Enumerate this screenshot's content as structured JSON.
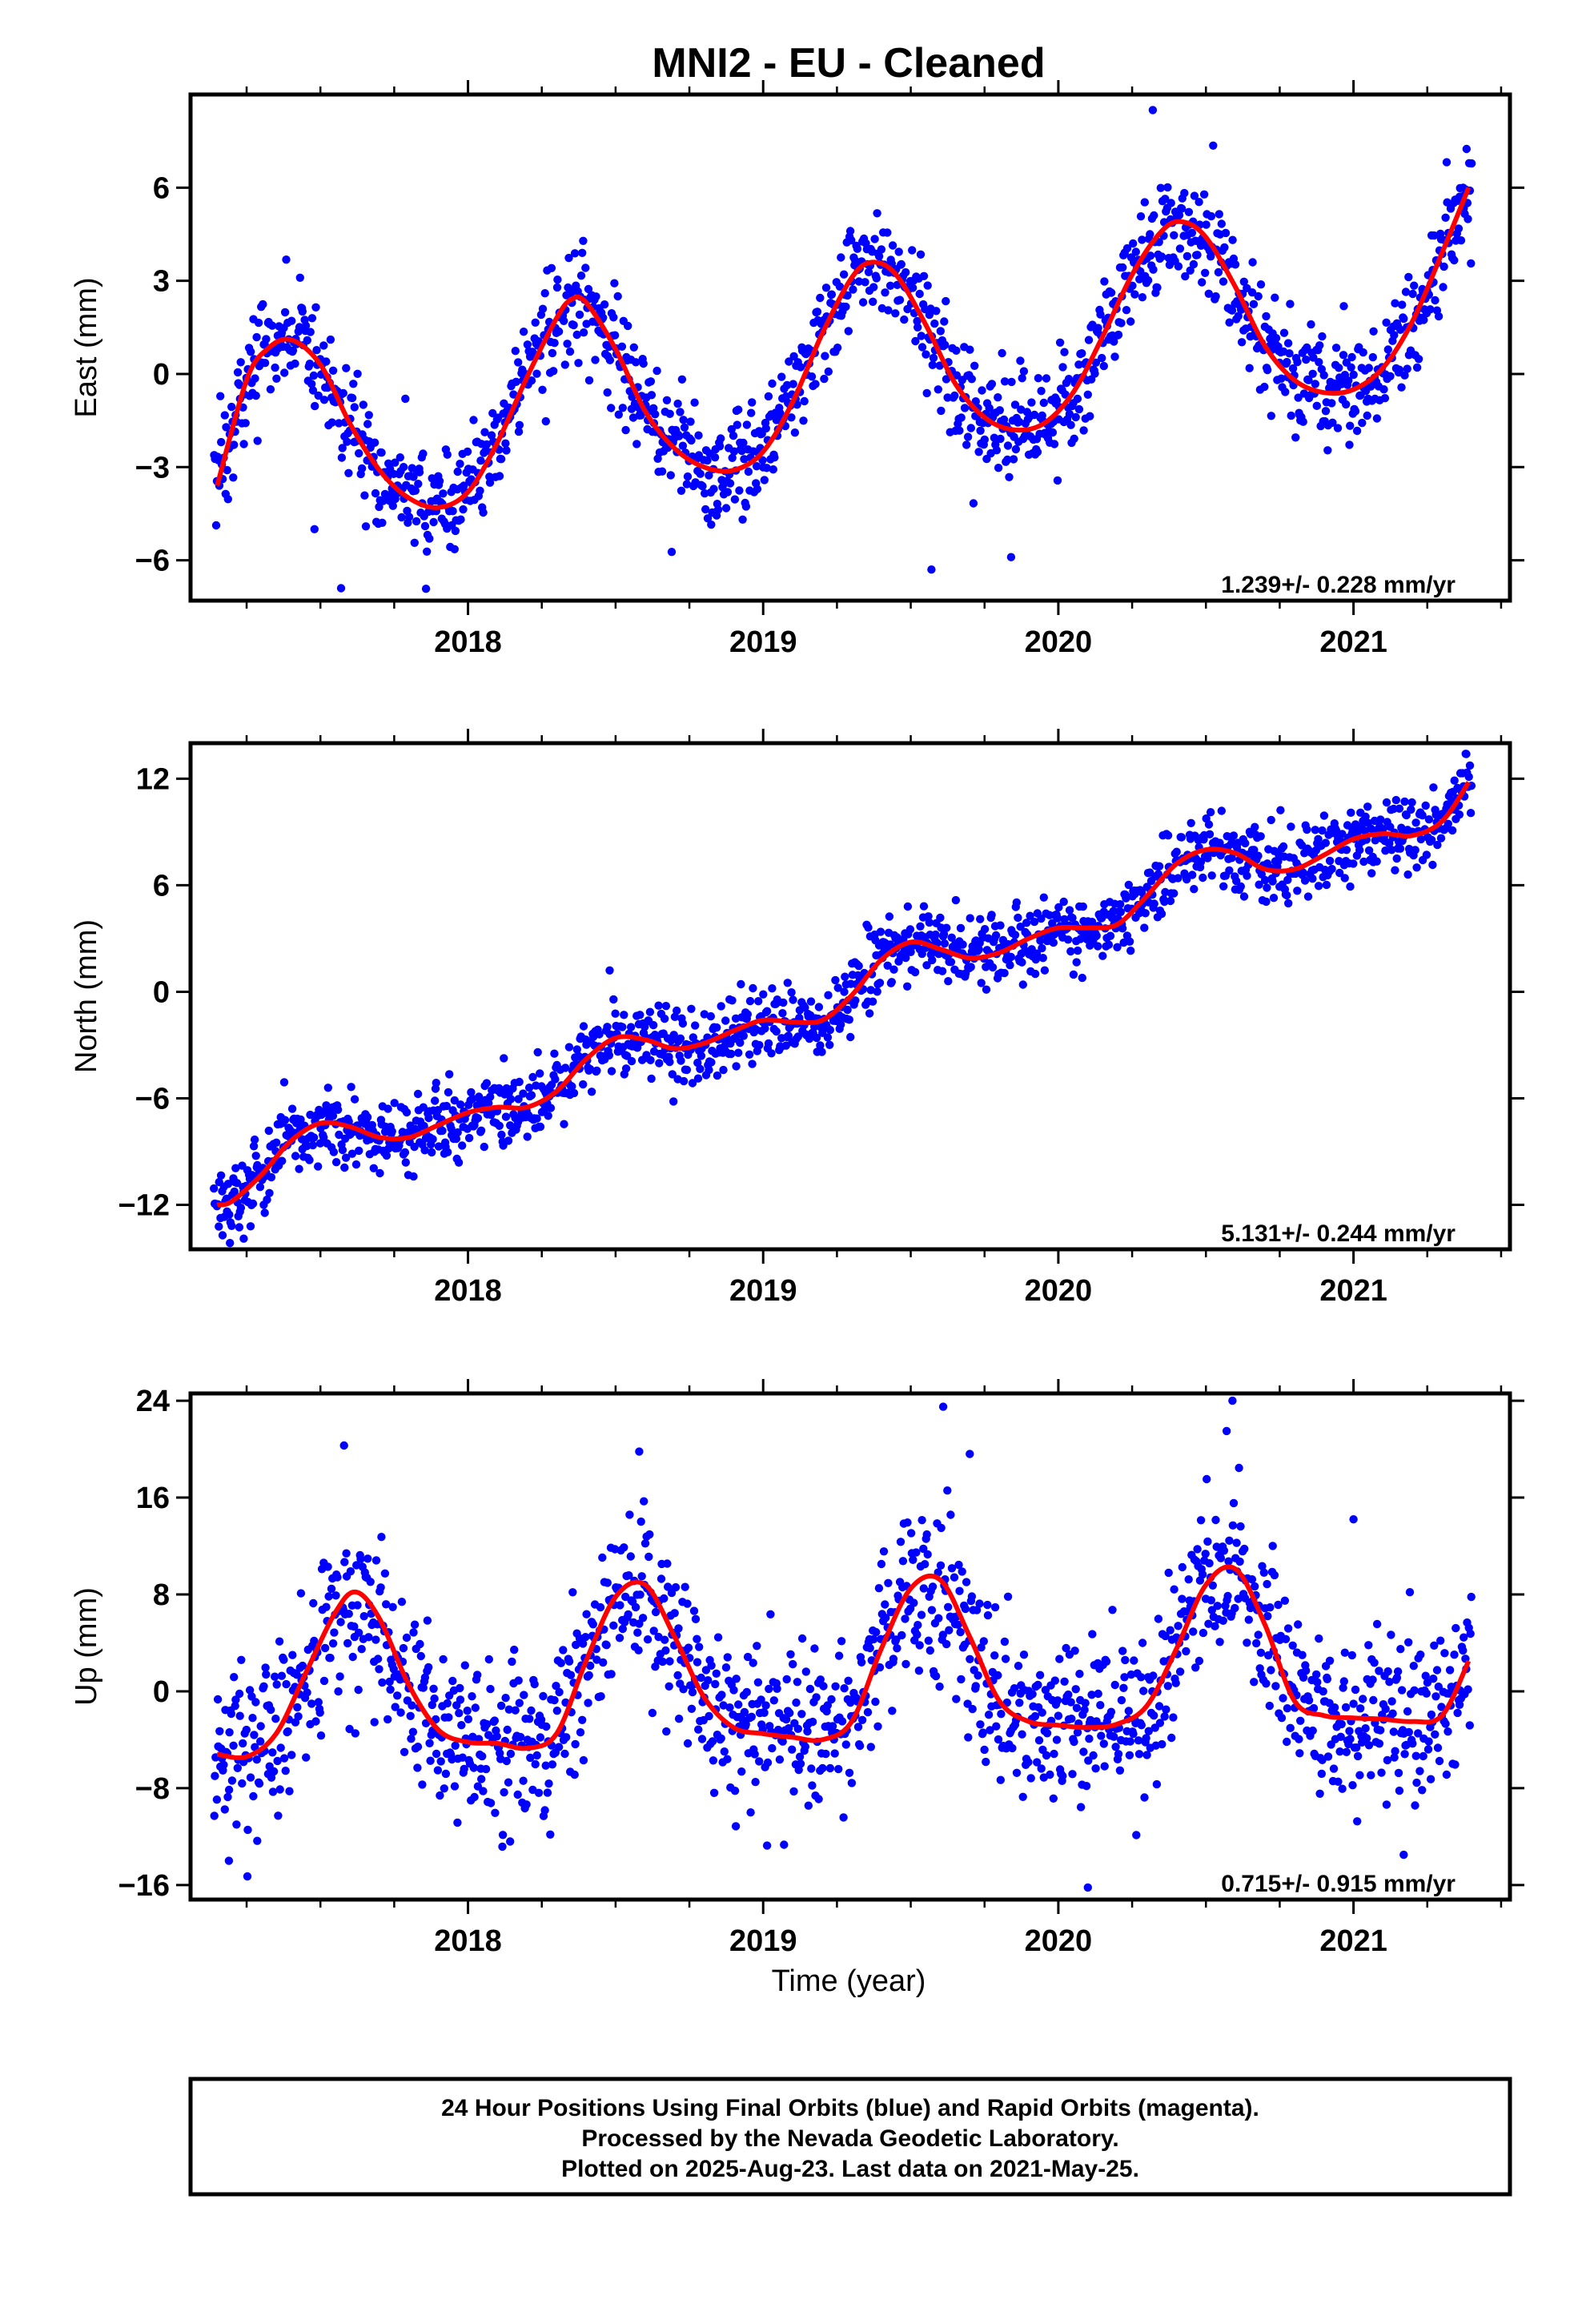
{
  "colors": {
    "points": "#0000ff",
    "model": "#ff0000",
    "frame": "#000000",
    "background": "#ffffff"
  },
  "title": "MNI2  - EU - Cleaned",
  "xlabel": "Time (year)",
  "footer": {
    "line1": "24 Hour Positions Using Final Orbits (blue) and Rapid Orbits (magenta).",
    "line2": "Processed by the Nevada Geodetic Laboratory.",
    "line3": "Plotted on 2025-Aug-23. Last data on 2021-May-25."
  },
  "chart_data": [
    {
      "type": "scatter",
      "ylabel": "East (mm)",
      "xlim": [
        2017.06,
        2021.53
      ],
      "ylim": [
        -7.3,
        9.0
      ],
      "yticks": [
        -6,
        -3,
        0,
        3,
        6
      ],
      "xticks": [
        2018,
        2019,
        2020,
        2021
      ],
      "grid": false,
      "rate_label": "1.239+/- 0.228 mm/yr",
      "series": [
        {
          "role": "model",
          "x": [
            2017.15,
            2017.25,
            2017.32,
            2017.4,
            2017.5,
            2017.6,
            2017.7,
            2017.8,
            2017.9,
            2018.0,
            2018.1,
            2018.2,
            2018.3,
            2018.35,
            2018.4,
            2018.5,
            2018.6,
            2018.7,
            2018.8,
            2018.9,
            2019.0,
            2019.1,
            2019.2,
            2019.3,
            2019.37,
            2019.45,
            2019.55,
            2019.65,
            2019.75,
            2019.85,
            2019.95,
            2020.05,
            2020.15,
            2020.25,
            2020.35,
            2020.42,
            2020.5,
            2020.6,
            2020.7,
            2020.8,
            2020.9,
            2021.0,
            2021.1,
            2021.2,
            2021.3,
            2021.39
          ],
          "y": [
            -3.6,
            -0.2,
            0.8,
            1.1,
            0.3,
            -1.6,
            -3.1,
            -4.0,
            -4.3,
            -3.8,
            -2.2,
            -0.1,
            1.8,
            2.4,
            2.3,
            0.8,
            -1.2,
            -2.4,
            -3.0,
            -3.1,
            -2.5,
            -0.9,
            1.3,
            3.1,
            3.6,
            3.2,
            1.6,
            -0.3,
            -1.4,
            -1.8,
            -1.6,
            -0.6,
            1.2,
            3.2,
            4.6,
            4.9,
            4.4,
            2.8,
            0.9,
            -0.2,
            -0.6,
            -0.5,
            0.2,
            1.7,
            3.9,
            6.0
          ]
        },
        {
          "role": "daily positions",
          "mean_x": [
            2017.15,
            2017.25,
            2017.32,
            2017.4,
            2017.5,
            2017.6,
            2017.7,
            2017.8,
            2017.9,
            2018.0,
            2018.1,
            2018.2,
            2018.3,
            2018.35,
            2018.4,
            2018.5,
            2018.6,
            2018.7,
            2018.8,
            2018.9,
            2019.0,
            2019.1,
            2019.2,
            2019.3,
            2019.37,
            2019.45,
            2019.55,
            2019.65,
            2019.75,
            2019.85,
            2019.95,
            2020.05,
            2020.15,
            2020.25,
            2020.35,
            2020.42,
            2020.5,
            2020.6,
            2020.7,
            2020.8,
            2020.9,
            2021.0,
            2021.1,
            2021.2,
            2021.3,
            2021.39
          ],
          "mean_y": [
            -3.6,
            -0.2,
            0.8,
            1.1,
            0.3,
            -1.6,
            -3.1,
            -4.0,
            -4.3,
            -3.8,
            -2.2,
            -0.1,
            1.8,
            2.4,
            2.3,
            0.8,
            -1.2,
            -2.4,
            -3.0,
            -3.1,
            -2.5,
            -0.9,
            1.3,
            3.1,
            3.6,
            3.2,
            1.6,
            -0.3,
            -1.4,
            -1.8,
            -1.6,
            -0.6,
            1.2,
            3.2,
            4.6,
            4.9,
            4.4,
            2.8,
            0.9,
            -0.2,
            -0.6,
            -0.5,
            0.2,
            1.7,
            3.9,
            6.0
          ],
          "scatter_sd": 0.9,
          "x_range": [
            2017.14,
            2021.4
          ],
          "n_points": 1450,
          "outliers": [
            [
              2020.32,
              8.5
            ],
            [
              2017.57,
              -6.9
            ],
            [
              2019.57,
              -6.3
            ],
            [
              2019.84,
              -5.9
            ],
            [
              2017.48,
              -5.0
            ]
          ]
        }
      ]
    },
    {
      "type": "scatter",
      "ylabel": "North (mm)",
      "xlim": [
        2017.06,
        2021.53
      ],
      "ylim": [
        -14.5,
        14.0
      ],
      "yticks": [
        -12,
        -6,
        0,
        6,
        12
      ],
      "xticks": [
        2018,
        2019,
        2020,
        2021
      ],
      "grid": false,
      "rate_label": "5.131+/- 0.244 mm/yr",
      "series": [
        {
          "role": "model",
          "x": [
            2017.15,
            2017.2,
            2017.3,
            2017.4,
            2017.5,
            2017.6,
            2017.7,
            2017.8,
            2017.9,
            2018.0,
            2018.1,
            2018.2,
            2018.3,
            2018.4,
            2018.5,
            2018.6,
            2018.7,
            2018.8,
            2018.9,
            2019.0,
            2019.1,
            2019.2,
            2019.3,
            2019.4,
            2019.5,
            2019.6,
            2019.7,
            2019.8,
            2019.9,
            2020.0,
            2020.1,
            2020.2,
            2020.3,
            2020.4,
            2020.5,
            2020.6,
            2020.7,
            2020.8,
            2020.9,
            2021.0,
            2021.1,
            2021.2,
            2021.3,
            2021.39
          ],
          "y": [
            -12.0,
            -11.8,
            -10.3,
            -8.4,
            -7.4,
            -7.6,
            -8.2,
            -8.2,
            -7.5,
            -6.8,
            -6.5,
            -6.5,
            -5.6,
            -3.8,
            -2.6,
            -2.7,
            -3.2,
            -2.9,
            -2.2,
            -1.6,
            -1.7,
            -1.6,
            -0.2,
            1.8,
            2.8,
            2.4,
            1.9,
            2.2,
            3.0,
            3.6,
            3.6,
            3.8,
            5.4,
            7.2,
            8.0,
            7.8,
            6.9,
            6.9,
            7.7,
            8.6,
            8.9,
            8.8,
            9.6,
            11.8
          ]
        },
        {
          "role": "daily positions",
          "mean_x": [
            2017.15,
            2017.2,
            2017.3,
            2017.4,
            2017.5,
            2017.6,
            2017.7,
            2017.8,
            2017.9,
            2018.0,
            2018.1,
            2018.2,
            2018.3,
            2018.4,
            2018.5,
            2018.6,
            2018.7,
            2018.8,
            2018.9,
            2019.0,
            2019.1,
            2019.2,
            2019.3,
            2019.4,
            2019.5,
            2019.6,
            2019.7,
            2019.8,
            2019.9,
            2020.0,
            2020.1,
            2020.2,
            2020.3,
            2020.4,
            2020.5,
            2020.6,
            2020.7,
            2020.8,
            2020.9,
            2021.0,
            2021.1,
            2021.2,
            2021.3,
            2021.39
          ],
          "mean_y": [
            -12.0,
            -11.8,
            -10.3,
            -8.4,
            -7.4,
            -7.6,
            -8.2,
            -8.2,
            -7.5,
            -6.8,
            -6.5,
            -6.5,
            -5.6,
            -3.8,
            -2.6,
            -2.7,
            -3.2,
            -2.9,
            -2.2,
            -1.6,
            -1.7,
            -1.6,
            -0.2,
            1.8,
            2.8,
            2.4,
            1.9,
            2.2,
            3.0,
            3.6,
            3.6,
            3.8,
            5.4,
            7.2,
            8.0,
            7.8,
            6.9,
            6.9,
            7.7,
            8.6,
            8.9,
            8.8,
            9.6,
            11.8
          ],
          "scatter_sd": 1.0,
          "x_range": [
            2017.14,
            2021.4
          ],
          "n_points": 1450,
          "outliers": [
            [
              2017.24,
              -13.9
            ],
            [
              2018.48,
              1.2
            ],
            [
              2019.49,
              4.8
            ],
            [
              2021.38,
              13.4
            ]
          ]
        }
      ]
    },
    {
      "type": "scatter",
      "ylabel": "Up (mm)",
      "xlim": [
        2017.06,
        2021.53
      ],
      "ylim": [
        -17.2,
        24.6
      ],
      "yticks": [
        -16,
        -8,
        0,
        8,
        16,
        24
      ],
      "xticks": [
        2018,
        2019,
        2020,
        2021
      ],
      "grid": false,
      "rate_label": "0.715+/- 0.915 mm/yr",
      "series": [
        {
          "role": "model",
          "x": [
            2017.15,
            2017.25,
            2017.35,
            2017.45,
            2017.55,
            2017.62,
            2017.7,
            2017.8,
            2017.9,
            2018.0,
            2018.1,
            2018.2,
            2018.3,
            2018.4,
            2018.5,
            2018.6,
            2018.7,
            2018.8,
            2018.9,
            2019.0,
            2019.1,
            2019.2,
            2019.3,
            2019.4,
            2019.5,
            2019.6,
            2019.7,
            2019.8,
            2019.9,
            2020.0,
            2020.1,
            2020.2,
            2020.3,
            2020.4,
            2020.5,
            2020.6,
            2020.7,
            2020.8,
            2020.9,
            2021.0,
            2021.1,
            2021.2,
            2021.3,
            2021.39
          ],
          "y": [
            -5.2,
            -5.4,
            -3.5,
            1.5,
            6.5,
            8.2,
            6.0,
            0.5,
            -3.2,
            -4.2,
            -4.3,
            -4.7,
            -3.5,
            2.5,
            7.8,
            8.8,
            4.5,
            -0.5,
            -3.0,
            -3.5,
            -3.8,
            -4.0,
            -2.5,
            3.5,
            8.5,
            9.2,
            4.5,
            -0.8,
            -2.5,
            -2.8,
            -3.0,
            -2.7,
            -1.2,
            3.5,
            8.8,
            10.1,
            5.5,
            -0.8,
            -2.0,
            -2.2,
            -2.3,
            -2.5,
            -2.0,
            2.5
          ]
        },
        {
          "role": "daily positions",
          "mean_x": [
            2017.15,
            2017.25,
            2017.35,
            2017.45,
            2017.55,
            2017.62,
            2017.7,
            2017.8,
            2017.9,
            2018.0,
            2018.1,
            2018.2,
            2018.3,
            2018.4,
            2018.5,
            2018.6,
            2018.7,
            2018.8,
            2018.9,
            2019.0,
            2019.1,
            2019.2,
            2019.3,
            2019.4,
            2019.5,
            2019.6,
            2019.7,
            2019.8,
            2019.9,
            2020.0,
            2020.1,
            2020.2,
            2020.3,
            2020.4,
            2020.5,
            2020.6,
            2020.7,
            2020.8,
            2020.9,
            2021.0,
            2021.1,
            2021.2,
            2021.3,
            2021.39
          ],
          "mean_y": [
            -5.2,
            -5.4,
            -3.5,
            1.5,
            6.5,
            8.2,
            6.0,
            0.5,
            -3.2,
            -4.2,
            -4.3,
            -4.7,
            -3.5,
            2.5,
            7.8,
            8.8,
            4.5,
            -0.5,
            -3.0,
            -3.5,
            -3.8,
            -4.0,
            -2.5,
            3.5,
            8.5,
            9.2,
            4.5,
            -0.8,
            -2.5,
            -2.8,
            -3.0,
            -2.7,
            -1.2,
            3.5,
            8.8,
            10.1,
            5.5,
            -0.8,
            -2.0,
            -2.2,
            -2.3,
            -2.5,
            -2.0,
            2.5
          ],
          "scatter_sd": 3.4,
          "x_range": [
            2017.14,
            2021.4
          ],
          "n_points": 1450,
          "outliers": [
            [
              2019.61,
              23.5
            ],
            [
              2020.59,
              24.0
            ],
            [
              2017.58,
              20.3
            ],
            [
              2018.58,
              19.8
            ],
            [
              2017.19,
              -14.0
            ],
            [
              2020.1,
              -16.2
            ],
            [
              2021.17,
              -13.5
            ],
            [
              2021.0,
              14.2
            ],
            [
              2019.7,
              19.6
            ],
            [
              2020.57,
              21.5
            ]
          ]
        }
      ]
    }
  ]
}
